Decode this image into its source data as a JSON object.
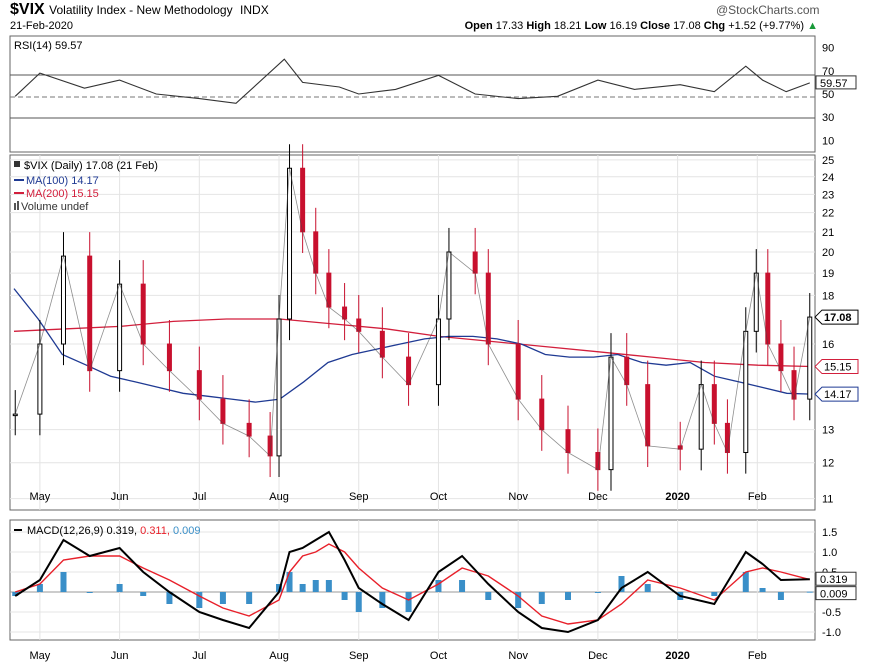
{
  "header": {
    "symbol": "$VIX",
    "name": "Volatility Index - New Methodology",
    "exchange": "INDX",
    "date": "21-Feb-2020",
    "copyright": "@StockCharts.com",
    "open_label": "Open",
    "open": "17.33",
    "high_label": "High",
    "high": "18.21",
    "low_label": "Low",
    "low": "16.19",
    "close_label": "Close",
    "close": "17.08",
    "chg_label": "Chg",
    "chg": "+1.52 (+9.77%)",
    "chg_arrow": "▲"
  },
  "colors": {
    "up": "#000000",
    "down": "#c8102e",
    "ma100": "#1f3a93",
    "ma200": "#d21f3c",
    "macd_hist": "#3a8fc8",
    "signal": "#e8202a"
  },
  "chart_data": [
    {
      "type": "line",
      "panel": "rsi",
      "legend": "RSI(14) 59.57",
      "yticks": [
        "90",
        "70",
        "50",
        "30",
        "10"
      ],
      "ylim": [
        0,
        100
      ],
      "reference_lines": [
        70,
        50,
        30
      ],
      "value_label": "59.57",
      "x": [
        "2020-04-22",
        "2020-05-01",
        "2020-05-18",
        "2020-06-01",
        "2020-06-15",
        "2020-07-01",
        "2020-07-15",
        "2020-08-03",
        "2020-08-10",
        "2020-08-24",
        "2020-09-01",
        "2020-09-15",
        "2020-10-01",
        "2020-10-15",
        "2020-11-01",
        "2020-11-16",
        "2020-12-01",
        "2020-12-15",
        "2020-01-02",
        "2020-01-15",
        "2020-01-27",
        "2020-02-03",
        "2020-02-12",
        "2020-02-21"
      ],
      "values": [
        48,
        68,
        55,
        62,
        50,
        46,
        42,
        80,
        60,
        56,
        50,
        54,
        66,
        50,
        46,
        48,
        62,
        54,
        58,
        52,
        74,
        62,
        52,
        59.57
      ]
    },
    {
      "type": "candlestick",
      "panel": "price",
      "legend_price": "$VIX (Daily) 17.08 (21 Feb)",
      "legend_ma100": "MA(100) 14.17",
      "legend_ma200": "MA(200) 15.15",
      "legend_volume": "Volume undef",
      "yticks": [
        "25",
        "24",
        "23",
        "22",
        "21",
        "20",
        "19",
        "18",
        "17.08",
        "16",
        "15.15",
        "14.17",
        "13",
        "12",
        "11"
      ],
      "ylim": [
        10.7,
        25.3
      ],
      "log_scale": true,
      "x_labels": [
        "May",
        "Jun",
        "Jul",
        "Aug",
        "Sep",
        "Oct",
        "Nov",
        "Dec",
        "2020",
        "Feb"
      ],
      "price_x": [
        "2020-04-22",
        "2020-05-01",
        "2020-05-10",
        "2020-05-20",
        "2020-06-01",
        "2020-06-10",
        "2020-06-20",
        "2020-07-01",
        "2020-07-10",
        "2020-07-20",
        "2020-07-28",
        "2020-08-01",
        "2020-08-05",
        "2020-08-10",
        "2020-08-15",
        "2020-08-20",
        "2020-08-26",
        "2020-09-01",
        "2020-09-10",
        "2020-09-20",
        "2020-10-01",
        "2020-10-05",
        "2020-10-15",
        "2020-10-20",
        "2020-11-01",
        "2020-11-10",
        "2020-11-20",
        "2020-12-01",
        "2020-12-06",
        "2020-12-12",
        "2020-12-20",
        "2020-01-02",
        "2020-01-10",
        "2020-01-15",
        "2020-01-20",
        "2020-01-27",
        "2020-01-31",
        "2020-02-05",
        "2020-02-10",
        "2020-02-15",
        "2020-02-21"
      ],
      "price_values": [
        13.5,
        16.0,
        19.8,
        15.0,
        18.5,
        16.0,
        15.0,
        14.0,
        13.2,
        12.8,
        12.2,
        17.0,
        24.5,
        21.0,
        19.0,
        17.5,
        17.0,
        16.5,
        15.5,
        14.5,
        17.0,
        20.0,
        19.0,
        16.0,
        14.0,
        13.0,
        12.3,
        11.8,
        15.5,
        14.5,
        12.5,
        12.4,
        14.5,
        13.2,
        12.3,
        16.5,
        19.0,
        16.0,
        15.0,
        14.0,
        17.08
      ],
      "ma100": [
        18.3,
        17.0,
        15.6,
        15.2,
        14.8,
        14.6,
        14.4,
        14.2,
        14.1,
        14.0,
        13.9,
        14.0,
        14.6,
        15.3,
        15.6,
        15.8,
        16.0,
        16.2,
        16.3,
        16.3,
        16.2,
        16.0,
        15.6,
        15.5,
        15.5,
        15.6,
        15.3,
        15.2,
        15.3,
        14.8,
        14.6,
        14.4,
        14.2,
        14.17
      ],
      "ma200": [
        16.5,
        16.6,
        16.7,
        16.9,
        17.0,
        17.0,
        16.8,
        16.6,
        16.3,
        16.1,
        15.9,
        15.7,
        15.5,
        15.3,
        15.2,
        15.15
      ],
      "price_label": "17.08",
      "ma100_label": "14.17",
      "ma200_label": "15.15"
    },
    {
      "type": "bar",
      "panel": "macd",
      "legend_label": "MACD(12,26,9)",
      "legend_macd": "0.319,",
      "legend_signal": "0.311,",
      "legend_hist": "0.009",
      "yticks": [
        "1.5",
        "1.0",
        "0.5",
        "0.0",
        "-0.5",
        "-1.0"
      ],
      "ylim": [
        -1.2,
        1.8
      ],
      "x": [
        "2020-04-22",
        "2020-05-01",
        "2020-05-10",
        "2020-05-20",
        "2020-06-01",
        "2020-06-10",
        "2020-06-20",
        "2020-07-01",
        "2020-07-10",
        "2020-07-20",
        "2020-08-01",
        "2020-08-05",
        "2020-08-10",
        "2020-08-15",
        "2020-08-20",
        "2020-08-26",
        "2020-09-01",
        "2020-09-10",
        "2020-09-20",
        "2020-10-01",
        "2020-10-10",
        "2020-10-20",
        "2020-11-01",
        "2020-11-10",
        "2020-11-20",
        "2020-12-01",
        "2020-12-10",
        "2020-12-20",
        "2020-01-02",
        "2020-01-15",
        "2020-01-27",
        "2020-02-03",
        "2020-02-10",
        "2020-02-21"
      ],
      "macd": [
        -0.1,
        0.3,
        1.3,
        0.9,
        1.1,
        0.5,
        0.0,
        -0.5,
        -0.7,
        -0.9,
        0.0,
        1.0,
        1.1,
        1.3,
        1.5,
        0.8,
        0.1,
        -0.3,
        -0.7,
        0.5,
        0.9,
        0.2,
        -0.5,
        -0.9,
        -1.0,
        -0.7,
        0.1,
        0.5,
        -0.1,
        -0.3,
        1.0,
        0.7,
        0.3,
        0.319
      ],
      "signal": [
        0.0,
        0.2,
        0.8,
        0.9,
        0.9,
        0.6,
        0.3,
        -0.1,
        -0.4,
        -0.6,
        -0.2,
        0.5,
        0.9,
        1.0,
        1.2,
        1.0,
        0.6,
        0.1,
        -0.2,
        0.2,
        0.6,
        0.4,
        -0.1,
        -0.6,
        -0.8,
        -0.7,
        -0.3,
        0.3,
        0.1,
        -0.2,
        0.5,
        0.6,
        0.5,
        0.311
      ],
      "histogram": [
        -0.1,
        0.2,
        0.5,
        0.0,
        0.2,
        -0.1,
        -0.3,
        -0.4,
        -0.3,
        -0.3,
        0.2,
        0.5,
        0.2,
        0.3,
        0.3,
        -0.2,
        -0.5,
        -0.4,
        -0.5,
        0.3,
        0.3,
        -0.2,
        -0.4,
        -0.3,
        -0.2,
        0.0,
        0.4,
        0.2,
        -0.2,
        -0.1,
        0.5,
        0.1,
        -0.2,
        0.009
      ],
      "macd_label": "0.319",
      "hist_label": "0.009",
      "x_labels": [
        "May",
        "Jun",
        "Jul",
        "Aug",
        "Sep",
        "Oct",
        "Nov",
        "Dec",
        "2020",
        "Feb"
      ]
    }
  ]
}
